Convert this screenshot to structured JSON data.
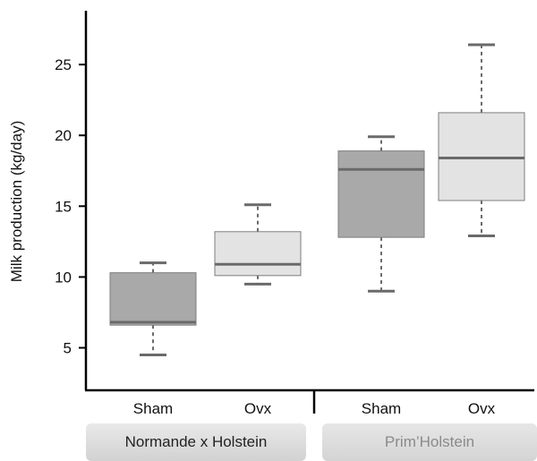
{
  "chart_data": {
    "type": "box",
    "ylabel": "Milk production (kg/day)",
    "ylim": [
      2,
      28.8
    ],
    "yticks": [
      5,
      10,
      15,
      20,
      25
    ],
    "categories": [
      "Sham",
      "Ovx",
      "Sham",
      "Ovx"
    ],
    "groups": [
      "Normande x Holstein",
      "Prim’Holstein"
    ],
    "boxes": [
      {
        "group": "Normande x Holstein",
        "category": "Sham",
        "min": 4.5,
        "q1": 6.6,
        "median": 6.8,
        "q3": 10.3,
        "max": 11.0
      },
      {
        "group": "Normande x Holstein",
        "category": "Ovx",
        "min": 9.5,
        "q1": 10.1,
        "median": 10.9,
        "q3": 13.2,
        "max": 15.1
      },
      {
        "group": "Prim’Holstein",
        "category": "Sham",
        "min": 9.0,
        "q1": 12.8,
        "median": 17.6,
        "q3": 18.9,
        "max": 19.9
      },
      {
        "group": "Prim’Holstein",
        "category": "Ovx",
        "min": 12.9,
        "q1": 15.4,
        "median": 18.4,
        "q3": 21.6,
        "max": 26.4
      }
    ],
    "colors": {
      "sham": "#a9a9a9",
      "ovx": "#e3e3e3",
      "median": "#6a6a6a",
      "whisker": "#6a6a6a",
      "axis": "#000000"
    },
    "grid": false
  }
}
